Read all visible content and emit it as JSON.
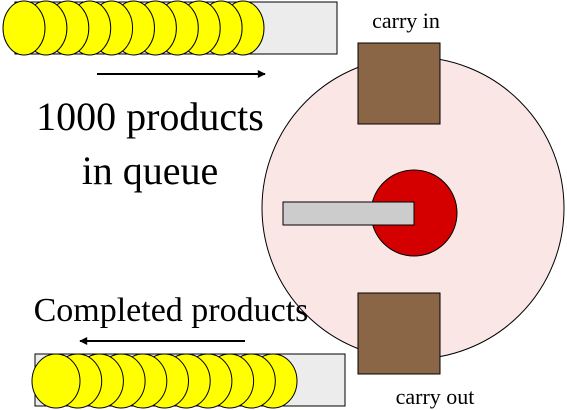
{
  "labels": {
    "carry_in": "carry in",
    "carry_out": "carry out",
    "queue_line1": "1000 products",
    "queue_line2": "in queue",
    "completed": "Completed products"
  },
  "colors": {
    "product_fill": "#ffff00",
    "product_stroke": "#000000",
    "tray_fill": "#ececec",
    "station_fill": "#8b6646",
    "turntable_fill": "#fbe6e6",
    "hub_fill": "#d40000",
    "arm_fill": "#cccccc"
  }
}
